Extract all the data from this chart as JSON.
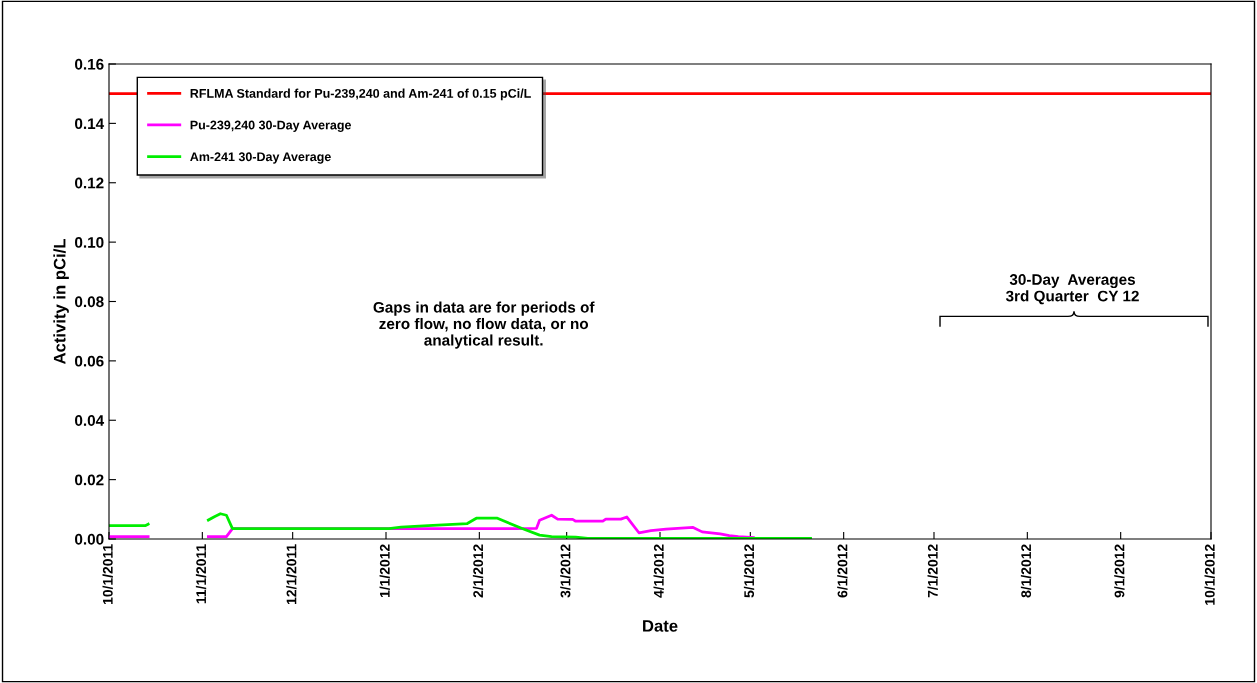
{
  "chart_data": {
    "type": "line",
    "xlabel": "Date",
    "ylabel": "Activity in pCi/L",
    "xlim": [
      "2011-10-01",
      "2012-10-01"
    ],
    "xticks": [
      {
        "value": "2011-10-01",
        "label": "10/1/2011"
      },
      {
        "value": "2011-11-01",
        "label": "11/1/2011"
      },
      {
        "value": "2011-12-01",
        "label": "12/1/2011"
      },
      {
        "value": "2012-01-01",
        "label": "1/1/2012"
      },
      {
        "value": "2012-02-01",
        "label": "2/1/2012"
      },
      {
        "value": "2012-03-01",
        "label": "3/1/2012"
      },
      {
        "value": "2012-04-01",
        "label": "4/1/2012"
      },
      {
        "value": "2012-05-01",
        "label": "5/1/2012"
      },
      {
        "value": "2012-06-01",
        "label": "6/1/2012"
      },
      {
        "value": "2012-07-01",
        "label": "7/1/2012"
      },
      {
        "value": "2012-08-01",
        "label": "8/1/2012"
      },
      {
        "value": "2012-09-01",
        "label": "9/1/2012"
      },
      {
        "value": "2012-10-01",
        "label": "10/1/2012"
      }
    ],
    "ylim": [
      0,
      0.16
    ],
    "yticks": [
      {
        "value": 0,
        "label": "0.00"
      },
      {
        "value": 0.02,
        "label": "0.02"
      },
      {
        "value": 0.04,
        "label": "0.04"
      },
      {
        "value": 0.06,
        "label": "0.06"
      },
      {
        "value": 0.08,
        "label": "0.08"
      },
      {
        "value": 0.1,
        "label": "0.10"
      },
      {
        "value": 0.12,
        "label": "0.12"
      },
      {
        "value": 0.14,
        "label": "0.14"
      },
      {
        "value": 0.16,
        "label": "0.16"
      }
    ],
    "grid": false,
    "legend": "top left",
    "marker": "none",
    "line_style": "solid",
    "series": [
      {
        "name": "RFLMA Standard for Pu-239,240 and Am-241 of 0.15 pCi/L",
        "color": "#ff0000",
        "x": [
          "2011-10-01",
          "2012-10-01"
        ],
        "values": [
          0.15,
          0.15
        ]
      },
      {
        "name": "Pu-239,240 30-Day Average",
        "color": "#ff00ff",
        "x": [
          "2011-10-01",
          "2011-10-14",
          "2011-10-24",
          "2011-11-03",
          "2011-11-09",
          "2011-11-11",
          "2012-02-13",
          "2012-02-20",
          "2012-02-21",
          "2012-02-25",
          "2012-02-27",
          "2012-03-03",
          "2012-03-04",
          "2012-03-13",
          "2012-03-14",
          "2012-03-19",
          "2012-03-21",
          "2012-03-25",
          "2012-03-29",
          "2012-04-03",
          "2012-04-12",
          "2012-04-15",
          "2012-04-21",
          "2012-04-24",
          "2012-04-27",
          "2012-05-02"
        ],
        "values": [
          0.0008,
          0.0008,
          null,
          0.0008,
          0.0008,
          0.0035,
          0.0035,
          0.0036,
          0.0063,
          0.008,
          0.0067,
          0.0066,
          0.006,
          0.006,
          0.0067,
          0.0067,
          0.0074,
          0.0021,
          0.0028,
          0.0033,
          0.0039,
          0.0024,
          0.0017,
          0.0011,
          0.0008,
          0.0005
        ]
      },
      {
        "name": "Am-241 30-Day Average",
        "color": "#00ee00",
        "x": [
          "2011-10-01",
          "2011-10-13",
          "2011-10-14",
          "2011-10-24",
          "2011-11-03",
          "2011-11-05",
          "2011-11-07",
          "2011-11-09",
          "2011-11-11",
          "2012-01-02",
          "2012-01-06",
          "2012-01-15",
          "2012-01-28",
          "2012-01-31",
          "2012-02-07",
          "2012-02-15",
          "2012-02-21",
          "2012-02-25",
          "2012-03-04",
          "2012-03-08",
          "2012-05-21"
        ],
        "values": [
          0.0045,
          0.0045,
          0.005,
          null,
          0.0064,
          0.0075,
          0.0085,
          0.008,
          0.0035,
          0.0035,
          0.004,
          0.0045,
          0.0052,
          0.007,
          0.007,
          0.0036,
          0.0013,
          0.0008,
          0.0006,
          0.0002,
          0.0002
        ]
      }
    ],
    "annotations": [
      "Gaps in data are for periods of\nzero flow, no flow data, or no\nanalytical result.",
      "30-Day  Averages\n3rd Quarter  CY 12"
    ]
  }
}
